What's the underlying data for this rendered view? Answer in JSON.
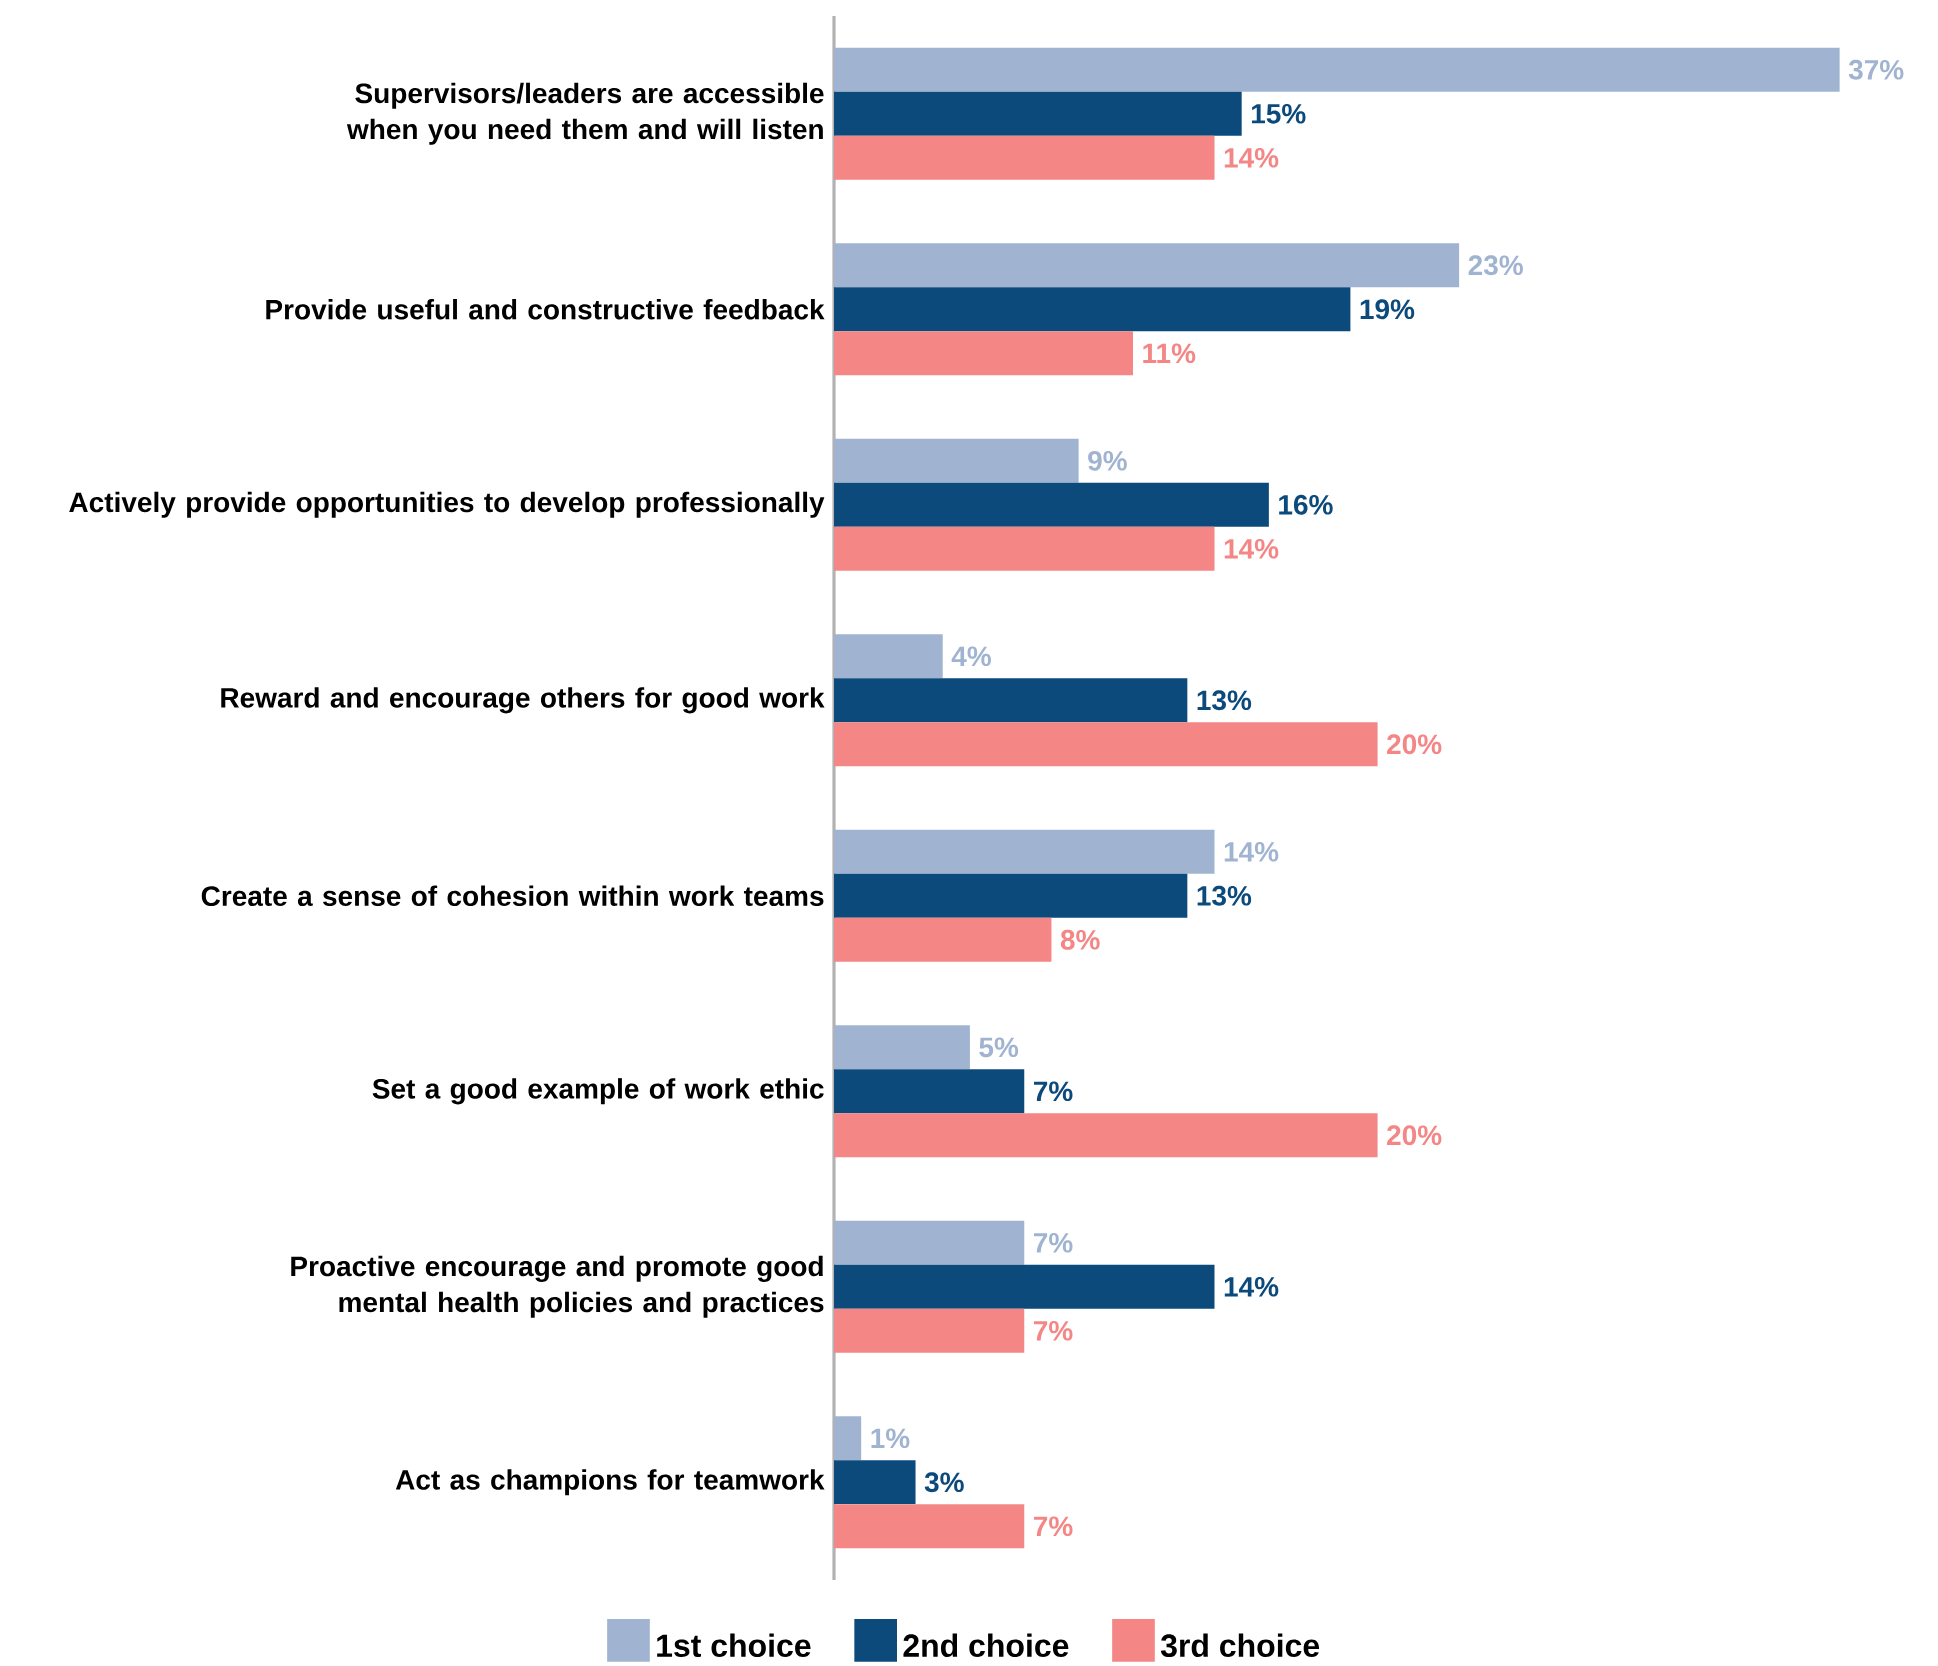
{
  "chart_data": {
    "type": "bar",
    "orientation": "horizontal",
    "legend": "bottom",
    "categories": [
      "Supervisors/leaders are accessible when you need them and will listen",
      "Provide useful and constructive feedback",
      "Actively provide opportunities to develop professionally",
      "Reward and encourage others for good work",
      "Create a sense of cohesion within work teams",
      "Set a good example of work ethic",
      "Proactive encourage and promote good mental health policies and practices",
      "Act as champions for teamwork"
    ],
    "series": [
      {
        "name": "1st choice",
        "color": "#a0b4d2",
        "values": [
          37,
          23,
          9,
          4,
          14,
          5,
          7,
          1
        ],
        "value_labels": [
          "37%",
          "23%",
          "9%",
          "4%",
          "14%",
          "5%",
          "7%",
          "1%"
        ]
      },
      {
        "name": "2nd choice",
        "color": "#0d4a7c",
        "values": [
          15,
          19,
          16,
          13,
          13,
          7,
          14,
          3
        ],
        "value_labels": [
          "15%",
          "19%",
          "16%",
          "13%",
          "13%",
          "7%",
          "14%",
          "3%"
        ]
      },
      {
        "name": "3rd choice",
        "color": "#f48686",
        "values": [
          14,
          11,
          14,
          20,
          8,
          20,
          7,
          7
        ],
        "value_labels": [
          "14%",
          "11%",
          "14%",
          "20%",
          "8%",
          "20%",
          "7%",
          "7%"
        ]
      }
    ]
  }
}
